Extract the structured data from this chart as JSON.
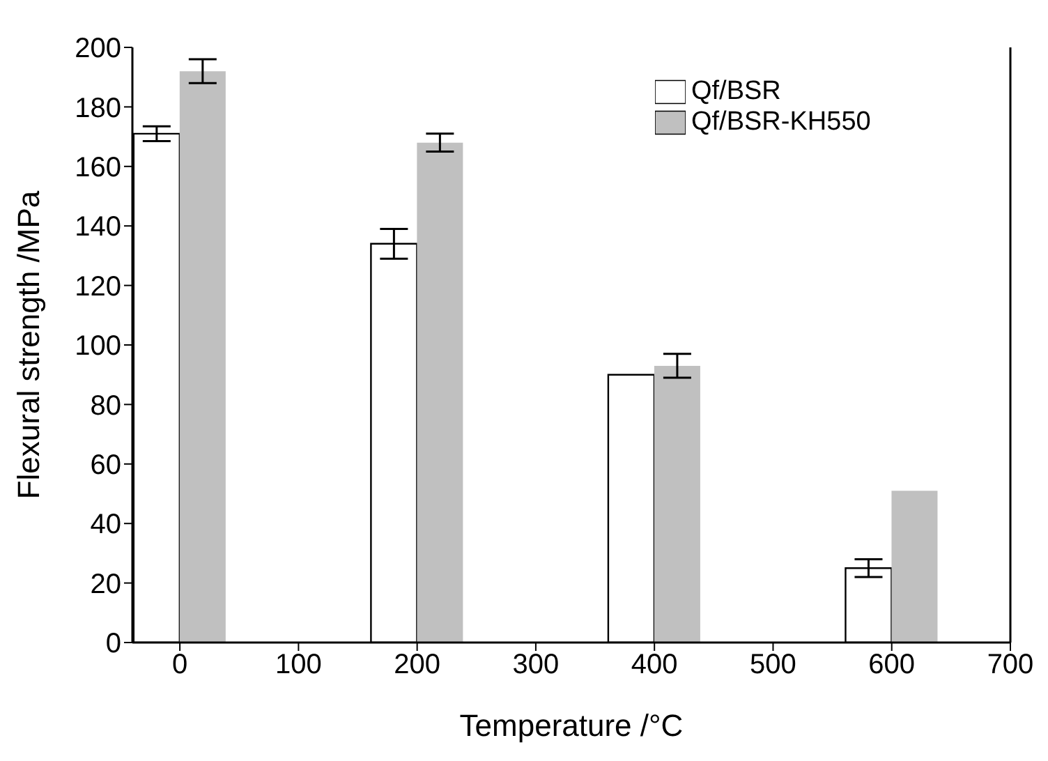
{
  "chart_data": {
    "type": "bar",
    "xlabel": "Temperature /°C",
    "ylabel": "Flexural strength /MPa",
    "x": [
      0,
      200,
      400,
      600
    ],
    "series": [
      {
        "name": "Qf/BSR",
        "color": "#ffffff",
        "values": [
          171,
          134,
          90,
          25
        ],
        "errors": [
          2.5,
          5,
          null,
          3
        ]
      },
      {
        "name": "Qf/BSR-KH550",
        "color": "#c0c0c0",
        "values": [
          192,
          168,
          93,
          51
        ],
        "errors": [
          4,
          3,
          4,
          null
        ]
      }
    ],
    "xlim": [
      -40,
      700
    ],
    "xticks": [
      0,
      100,
      200,
      300,
      400,
      500,
      600,
      700
    ],
    "ylim": [
      0,
      200
    ],
    "yticks": [
      0,
      20,
      40,
      60,
      80,
      100,
      120,
      140,
      160,
      180,
      200
    ],
    "grid": false,
    "legend": "top right"
  }
}
